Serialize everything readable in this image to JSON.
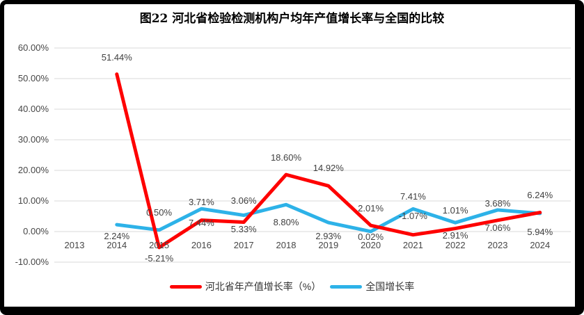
{
  "title": "图22  河北省检验检测机构户均年产值增长率与全国的比较",
  "chart_data": {
    "type": "line",
    "categories": [
      "2013",
      "2014",
      "2015",
      "2016",
      "2017",
      "2018",
      "2019",
      "2020",
      "2021",
      "2022",
      "2023",
      "2024"
    ],
    "y_axis": {
      "min": -10,
      "max": 60,
      "ticks": [
        {
          "label": "60.00%",
          "value": 60
        },
        {
          "label": "50.00%",
          "value": 50
        },
        {
          "label": "40.00%",
          "value": 40
        },
        {
          "label": "30.00%",
          "value": 30
        },
        {
          "label": "20.00%",
          "value": 20
        },
        {
          "label": "10.00%",
          "value": 10
        },
        {
          "label": "0.00%",
          "value": 0
        },
        {
          "label": "-10.00%",
          "value": -10
        }
      ]
    },
    "series": [
      {
        "id": "hebei",
        "name": "河北省年产值增长率（%）",
        "color": "#fe0000",
        "values": [
          null,
          51.44,
          -5.21,
          3.71,
          3.06,
          18.6,
          14.92,
          2.01,
          -1.07,
          1.01,
          3.68,
          6.24
        ],
        "labels": [
          null,
          "51.44%",
          "-5.21%",
          "3.71%",
          "3.06%",
          "18.60%",
          "14.92%",
          "2.01%",
          "-1.07%",
          "1.01%",
          "3.68%",
          "6.24%"
        ],
        "label_dy": [
          null,
          -24,
          16,
          -26,
          -31,
          -24,
          -25,
          -24,
          -27,
          -26,
          -24,
          -25
        ]
      },
      {
        "id": "national",
        "name": "全国增长率",
        "color": "#2db2e8",
        "values": [
          null,
          2.24,
          0.5,
          7.44,
          5.33,
          8.8,
          2.93,
          0.02,
          7.41,
          2.91,
          7.06,
          5.94
        ],
        "labels": [
          null,
          "2.24%",
          "0.50%",
          "7.44%",
          "5.33%",
          "8.80%",
          "2.93%",
          "0.02%",
          "7.41%",
          "2.91%",
          "7.06%",
          "5.94%"
        ],
        "label_dy": [
          null,
          17,
          -25,
          21,
          20,
          26,
          20,
          8,
          -17,
          19,
          26,
          27
        ]
      }
    ],
    "grid": true,
    "legend_position": "bottom"
  }
}
